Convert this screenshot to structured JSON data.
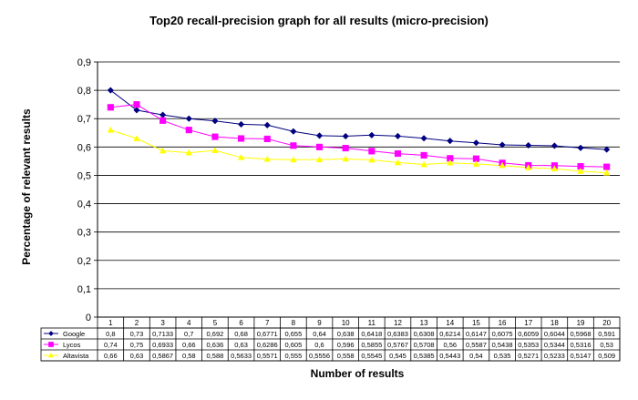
{
  "chart_data": {
    "type": "line",
    "title": "Top20 recall-precision graph for all results (micro-precision)",
    "xlabel": "Number of results",
    "ylabel": "Percentage of relevant results",
    "ylim": [
      0,
      0.9
    ],
    "ytick_labels": [
      "0",
      "0,1",
      "0,2",
      "0,3",
      "0,4",
      "0,5",
      "0,6",
      "0,7",
      "0,8",
      "0,9"
    ],
    "grid": "horizontal",
    "legend": "data-table",
    "categories": [
      "1",
      "2",
      "3",
      "4",
      "5",
      "6",
      "7",
      "8",
      "9",
      "10",
      "11",
      "12",
      "13",
      "14",
      "15",
      "16",
      "17",
      "18",
      "19",
      "20"
    ],
    "series": [
      {
        "name": "Google",
        "color": "#000080",
        "marker": "diamond",
        "values": [
          0.8,
          0.73,
          0.7133,
          0.7,
          0.692,
          0.68,
          0.6771,
          0.655,
          0.64,
          0.638,
          0.6418,
          0.6383,
          0.6308,
          0.6214,
          0.6147,
          0.6075,
          0.6059,
          0.6044,
          0.5968,
          0.591
        ],
        "labels": [
          "0,8",
          "0,73",
          "0,7133",
          "0,7",
          "0,692",
          "0,68",
          "0,6771",
          "0,655",
          "0,64",
          "0,638",
          "0,6418",
          "0,6383",
          "0,6308",
          "0,6214",
          "0,6147",
          "0,6075",
          "0,6059",
          "0,6044",
          "0,5968",
          "0,591"
        ]
      },
      {
        "name": "Lycos",
        "color": "#FF00FF",
        "marker": "square",
        "values": [
          0.74,
          0.75,
          0.6933,
          0.66,
          0.636,
          0.63,
          0.6286,
          0.605,
          0.6,
          0.596,
          0.5855,
          0.5767,
          0.5708,
          0.56,
          0.5587,
          0.5438,
          0.5353,
          0.5344,
          0.5316,
          0.53
        ],
        "labels": [
          "0,74",
          "0,75",
          "0,6933",
          "0,66",
          "0,636",
          "0,63",
          "0,6286",
          "0,605",
          "0,6",
          "0,596",
          "0,5855",
          "0,5767",
          "0,5708",
          "0,56",
          "0,5587",
          "0,5438",
          "0,5353",
          "0,5344",
          "0,5316",
          "0,53"
        ]
      },
      {
        "name": "Altavista",
        "color": "#FFFF00",
        "marker": "triangle",
        "values": [
          0.66,
          0.63,
          0.5867,
          0.58,
          0.588,
          0.5633,
          0.5571,
          0.555,
          0.5556,
          0.558,
          0.5545,
          0.545,
          0.5385,
          0.5443,
          0.54,
          0.535,
          0.5271,
          0.5233,
          0.5147,
          0.509
        ],
        "labels": [
          "0,66",
          "0,63",
          "0,5867",
          "0,58",
          "0,588",
          "0,5633",
          "0,5571",
          "0,555",
          "0,5556",
          "0,558",
          "0,5545",
          "0,545",
          "0,5385",
          "0,5443",
          "0,54",
          "0,535",
          "0,5271",
          "0,5233",
          "0,5147",
          "0,509"
        ]
      }
    ]
  }
}
